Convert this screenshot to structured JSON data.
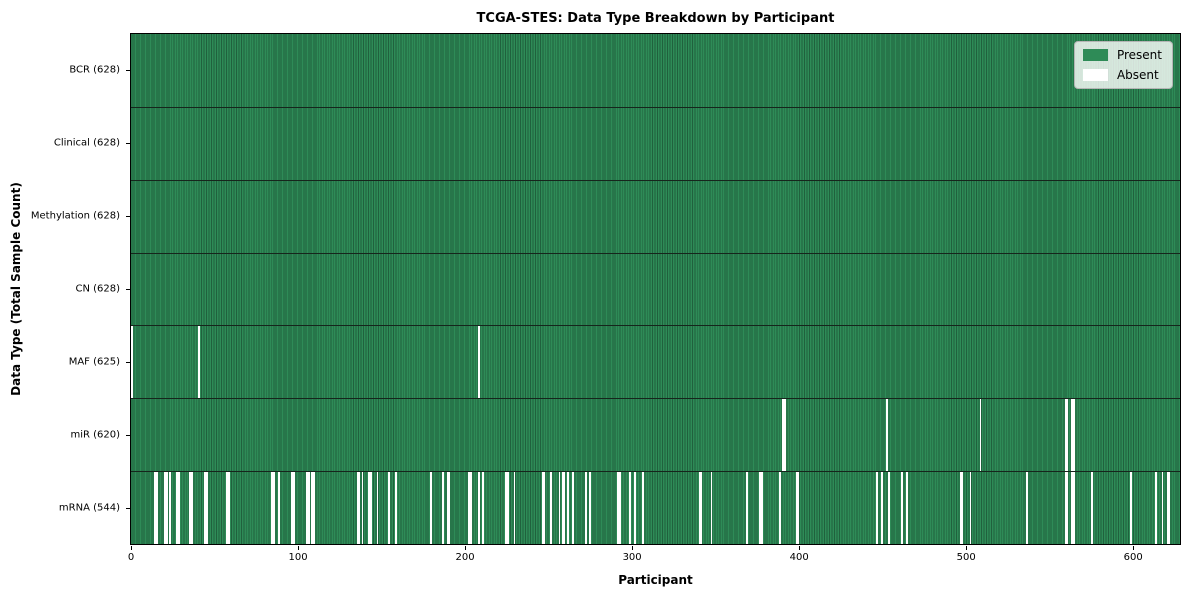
{
  "colors": {
    "present": "#2e8b57",
    "absent": "#ffffff",
    "cell_edge": "rgba(0,0,0,0.30)",
    "row_divider": "#16251c",
    "axis": "#000000",
    "legend_bg": "rgba(255,255,255,0.8)",
    "legend_border": "#b5b5b5"
  },
  "chart_data": {
    "type": "heatmap",
    "title": "TCGA-STES: Data Type Breakdown by Participant",
    "xlabel": "Participant",
    "ylabel": "Data Type (Total Sample Count)",
    "x_ticks": [
      0,
      100,
      200,
      300,
      400,
      500,
      600
    ],
    "x_range": [
      0,
      628
    ],
    "n_participants": 628,
    "grid": false,
    "legend_position": "upper right",
    "legend": [
      {
        "label": "Present",
        "color": "#2e8b57"
      },
      {
        "label": "Absent",
        "color": "#ffffff"
      }
    ],
    "rows": [
      {
        "label": "BCR (628)",
        "data_type": "BCR",
        "total_samples": 628,
        "absent_participants": []
      },
      {
        "label": "Clinical (628)",
        "data_type": "Clinical",
        "total_samples": 628,
        "absent_participants": []
      },
      {
        "label": "Methylation (628)",
        "data_type": "Methylation",
        "total_samples": 628,
        "absent_participants": []
      },
      {
        "label": "CN (628)",
        "data_type": "CN",
        "total_samples": 628,
        "absent_participants": []
      },
      {
        "label": "MAF (625)",
        "data_type": "MAF",
        "total_samples": 625,
        "absent_participants": [
          0,
          40,
          208
        ]
      },
      {
        "label": "miR (620)",
        "data_type": "miR",
        "total_samples": 620,
        "absent_participants": [
          390,
          391,
          452,
          508,
          559,
          560,
          563,
          564
        ]
      },
      {
        "label": "mRNA (544)",
        "data_type": "mRNA",
        "total_samples": 544,
        "absent_participants": [
          14,
          15,
          20,
          21,
          23,
          27,
          28,
          35,
          36,
          44,
          45,
          57,
          58,
          84,
          85,
          88,
          96,
          97,
          105,
          106,
          108,
          109,
          135,
          136,
          138,
          142,
          143,
          147,
          154,
          158,
          179,
          186,
          189,
          190,
          202,
          203,
          208,
          210,
          224,
          225,
          229,
          246,
          247,
          251,
          256,
          258,
          259,
          261,
          264,
          272,
          274,
          291,
          292,
          298,
          301,
          306,
          340,
          341,
          347,
          368,
          376,
          377,
          388,
          398,
          399,
          446,
          449,
          453,
          461,
          464,
          496,
          497,
          502,
          536,
          559,
          560,
          563,
          564,
          575,
          598,
          613,
          617,
          620,
          621
        ]
      }
    ]
  }
}
